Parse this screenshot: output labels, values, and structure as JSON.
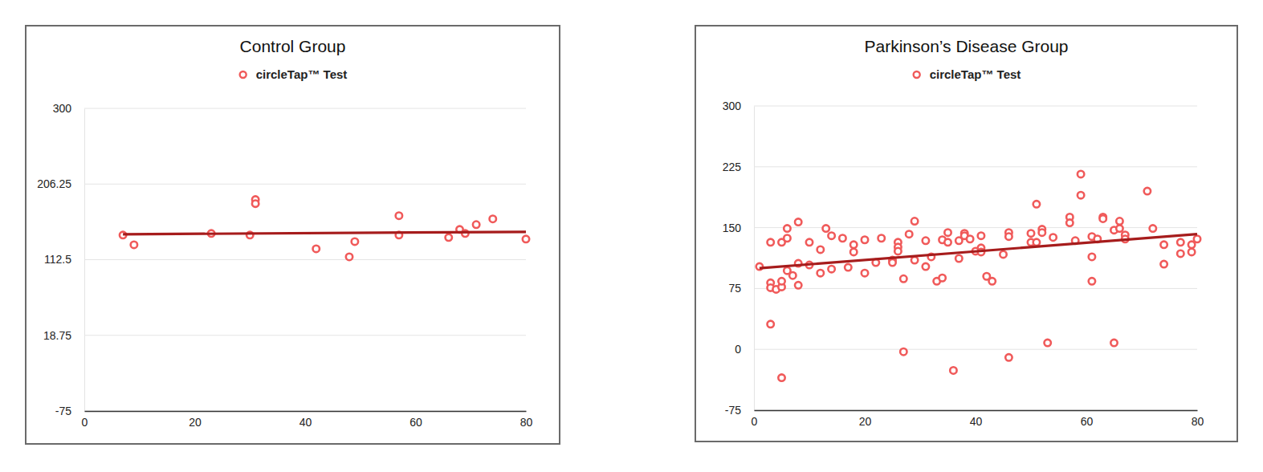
{
  "chart_data": [
    {
      "type": "scatter",
      "title": "Control Group",
      "xlim": [
        0,
        80
      ],
      "xticks": [
        0,
        20,
        40,
        60,
        80
      ],
      "ylim": [
        -75,
        300
      ],
      "yticks": [
        -75,
        18.75,
        112.5,
        206.25,
        300
      ],
      "grid": true,
      "legend": "top",
      "series": [
        {
          "name": "circleTap™ Test",
          "color": "#f05a5a",
          "marker": "circle",
          "x": [
            7,
            9,
            23,
            30,
            31,
            31,
            42,
            48,
            49,
            57,
            57,
            66,
            68,
            69,
            71,
            74,
            80
          ],
          "values": [
            143,
            131,
            145,
            143,
            187,
            182,
            126,
            116,
            135,
            167,
            143,
            140,
            150,
            145,
            156,
            163,
            138
          ]
        },
        {
          "type": "line",
          "color": "#a61c1c",
          "line_style": "solid",
          "x": [
            7,
            80
          ],
          "values": [
            144,
            147
          ]
        }
      ]
    },
    {
      "type": "scatter",
      "title": "Parkinson’s Disease Group",
      "xlim": [
        0,
        80
      ],
      "xticks": [
        0,
        20,
        40,
        60,
        80
      ],
      "ylim": [
        -75,
        300
      ],
      "yticks": [
        -75,
        0,
        75,
        150,
        225,
        300
      ],
      "grid": true,
      "legend": "top",
      "series": [
        {
          "name": "circleTap™ Test",
          "color": "#f05a5a",
          "marker": "circle",
          "x": [
            1,
            3,
            3,
            3,
            3,
            4,
            5,
            5,
            5,
            5,
            6,
            6,
            6,
            7,
            8,
            8,
            8,
            10,
            10,
            12,
            12,
            13,
            14,
            14,
            16,
            17,
            18,
            18,
            20,
            20,
            22,
            23,
            25,
            25,
            26,
            26,
            26,
            27,
            27,
            28,
            29,
            29,
            31,
            31,
            32,
            33,
            34,
            34,
            35,
            35,
            36,
            37,
            37,
            38,
            38,
            39,
            40,
            41,
            41,
            41,
            42,
            43,
            45,
            46,
            46,
            46,
            50,
            50,
            51,
            51,
            52,
            52,
            53,
            54,
            57,
            57,
            58,
            59,
            59,
            61,
            61,
            61,
            62,
            63,
            63,
            65,
            65,
            66,
            66,
            67,
            67,
            71,
            72,
            74,
            74,
            77,
            77,
            79,
            79,
            80
          ],
          "values": [
            102,
            132,
            82,
            76,
            31,
            74,
            -35,
            77,
            84,
            132,
            137,
            149,
            97,
            91,
            157,
            106,
            79,
            104,
            132,
            123,
            94,
            149,
            140,
            99,
            137,
            101,
            129,
            120,
            135,
            94,
            107,
            137,
            110,
            107,
            132,
            126,
            121,
            -3,
            87,
            142,
            158,
            110,
            134,
            102,
            114,
            84,
            88,
            135,
            144,
            132,
            -26,
            112,
            134,
            143,
            140,
            136,
            121,
            140,
            125,
            120,
            90,
            84,
            117,
            -10,
            144,
            139,
            143,
            132,
            179,
            132,
            148,
            144,
            8,
            138,
            163,
            156,
            134,
            216,
            190,
            139,
            114,
            84,
            136,
            163,
            161,
            8,
            147,
            158,
            149,
            141,
            136,
            195,
            149,
            129,
            105,
            132,
            118,
            129,
            120,
            136
          ]
        },
        {
          "type": "line",
          "color": "#a61c1c",
          "line_style": "solid",
          "x": [
            1,
            80
          ],
          "values": [
            100,
            142
          ]
        }
      ]
    }
  ]
}
